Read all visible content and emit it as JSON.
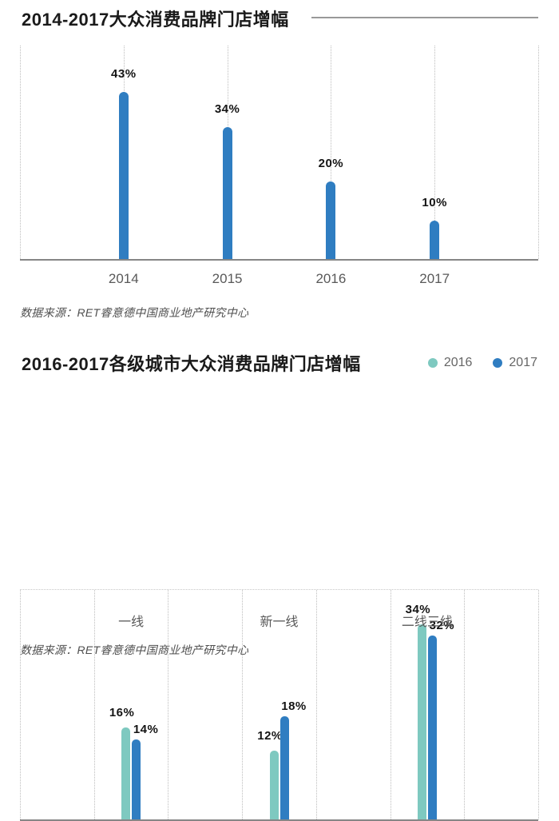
{
  "chart_data": [
    {
      "type": "bar",
      "title": "2014-2017大众消费品牌门店增幅",
      "categories": [
        "2014",
        "2015",
        "2016",
        "2017"
      ],
      "values": [
        43,
        34,
        20,
        10
      ],
      "data_labels": [
        "43%",
        "34%",
        "20%",
        "10%"
      ],
      "unit": "%",
      "ylim": [
        0,
        55
      ],
      "bar_color": "#2f7dc1",
      "grid": "vertical-dotted",
      "legend_position": "none",
      "source": "数据来源：RET睿意德中国商业地产研究中心"
    },
    {
      "type": "bar",
      "title": "2016-2017各级城市大众消费品牌门店增幅",
      "categories": [
        "一线",
        "新一线",
        "二线三线"
      ],
      "series": [
        {
          "name": "2016",
          "color": "#7ec9c0",
          "values": [
            16,
            12,
            34
          ],
          "data_labels": [
            "16%",
            "12%",
            "34%"
          ]
        },
        {
          "name": "2017",
          "color": "#2f7dc1",
          "values": [
            14,
            18,
            32
          ],
          "data_labels": [
            "14%",
            "18%",
            "32%"
          ]
        }
      ],
      "ylim": [
        0,
        40
      ],
      "grid": "vertical-dotted",
      "legend_position": "top-right",
      "source": "数据来源：RET睿意德中国商业地产研究中心"
    }
  ],
  "colors": {
    "blue": "#2f7dc1",
    "teal": "#7ec9c0",
    "axis_line": "#868686",
    "gridline": "#bdbdbd",
    "value_text": "#141414",
    "axis_text": "#595959",
    "source_text": "#4f4f4f",
    "title_rule": "#999999"
  }
}
